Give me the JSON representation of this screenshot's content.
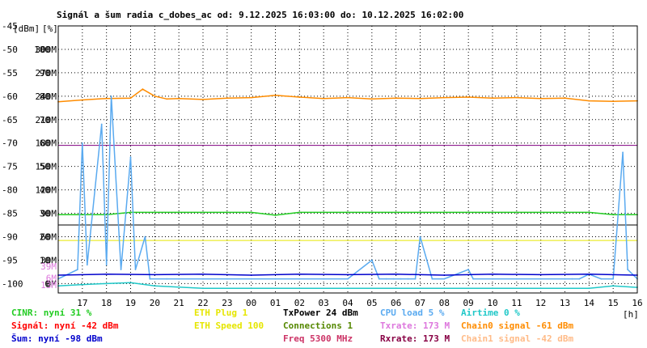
{
  "chart_data": {
    "type": "line",
    "title": "Signál a šum radia c_dobes_ac od: 9.12.2025 16:03:00 do: 10.12.2025 16:02:00",
    "axis_units": {
      "dbm": "[dBm]",
      "pct": "[%]"
    },
    "xunit": "[h]",
    "y_dbm_ticks": [
      -45,
      -50,
      -55,
      -60,
      -65,
      -70,
      -75,
      -80,
      -85,
      -90,
      -95,
      -100
    ],
    "y_pct_ticks": [
      null,
      100,
      90,
      80,
      70,
      60,
      50,
      40,
      30,
      20,
      10,
      0
    ],
    "y_rate_ticks": [
      null,
      "300M",
      "270M",
      "240M",
      "210M",
      "180M",
      "150M",
      "120M",
      "90M",
      "60M",
      "30M",
      "0M"
    ],
    "y_rate_extra": [
      "39M",
      "13M",
      "6M"
    ],
    "ylim_dbm": [
      -102,
      -45
    ],
    "x_ticks": [
      "17",
      "18",
      "19",
      "20",
      "21",
      "22",
      "23",
      "00",
      "01",
      "02",
      "03",
      "04",
      "05",
      "06",
      "07",
      "08",
      "09",
      "10",
      "11",
      "12",
      "13",
      "14",
      "15",
      "16"
    ],
    "xlim_hours": [
      0,
      24
    ],
    "reference_lines": [
      {
        "name": "purple",
        "dbm": -70.5,
        "color": "#800080"
      },
      {
        "name": "black",
        "dbm": -87.5,
        "color": "#000000"
      },
      {
        "name": "yellow",
        "dbm": -90.8,
        "color": "#e6e600"
      }
    ],
    "series": [
      {
        "name": "Chain0 signal -61 dBm",
        "color": "#ff8c00",
        "x": [
          0.0,
          1.0,
          2.0,
          3.0,
          3.5,
          4.0,
          4.5,
          5.0,
          6.0,
          7.0,
          8.0,
          9.0,
          10.0,
          11.0,
          12.0,
          13.0,
          14.0,
          15.0,
          16.0,
          17.0,
          18.0,
          19.0,
          20.0,
          21.0,
          22.0,
          23.0,
          24.0
        ],
        "y": [
          -61.2,
          -60.8,
          -60.5,
          -60.4,
          -58.5,
          -60.0,
          -60.6,
          -60.5,
          -60.7,
          -60.4,
          -60.3,
          -59.8,
          -60.2,
          -60.5,
          -60.3,
          -60.6,
          -60.4,
          -60.5,
          -60.3,
          -60.2,
          -60.4,
          -60.3,
          -60.5,
          -60.4,
          -61.0,
          -61.1,
          -61.0
        ]
      },
      {
        "name": "green",
        "color": "#22cc22",
        "x": [
          0.0,
          1.0,
          2.0,
          3.0,
          4.0,
          5.0,
          6.0,
          7.0,
          8.0,
          9.0,
          10.0,
          11.0,
          12.0,
          13.0,
          14.0,
          15.0,
          16.0,
          17.0,
          18.0,
          19.0,
          20.0,
          21.0,
          22.0,
          23.0,
          24.0
        ],
        "y": [
          -85.3,
          -85.3,
          -85.3,
          -84.8,
          -84.8,
          -84.8,
          -84.8,
          -84.8,
          -84.8,
          -85.4,
          -84.8,
          -84.8,
          -84.8,
          -84.8,
          -84.8,
          -84.8,
          -84.8,
          -84.8,
          -84.8,
          -84.8,
          -84.8,
          -84.8,
          -84.8,
          -85.3,
          -85.3
        ]
      },
      {
        "name": "CPU load 5 %",
        "color": "#5aaaf0",
        "x": [
          0.0,
          0.8,
          1.0,
          1.2,
          1.8,
          2.0,
          2.2,
          2.6,
          3.0,
          3.2,
          3.6,
          3.8,
          4.5,
          5.0,
          6.0,
          7.0,
          8.0,
          9.0,
          10.0,
          11.0,
          12.0,
          13.0,
          13.3,
          13.6,
          13.9,
          14.2,
          14.5,
          14.8,
          15.0,
          15.5,
          16.0,
          17.0,
          17.2,
          18.0,
          19.0,
          20.0,
          21.0,
          21.3,
          21.6,
          22.0,
          22.5,
          23.0,
          23.4,
          23.6,
          24.0
        ],
        "y": [
          -99,
          -97,
          -70,
          -96,
          -66,
          -96,
          -60,
          -97,
          -73,
          -97,
          -90,
          -99,
          -99,
          -99,
          -99,
          -99,
          -99,
          -99,
          -99,
          -99,
          -99,
          -95,
          -99,
          -99,
          -99,
          -99,
          -99,
          -99,
          -90,
          -99,
          -99,
          -97,
          -99,
          -99,
          -99,
          -99,
          -99,
          -99,
          -99,
          -98,
          -99,
          -99,
          -72,
          -97,
          -99
        ]
      },
      {
        "name": "Airtime 0 %",
        "color": "#20c8c8",
        "x": [
          0.0,
          1.0,
          2.0,
          3.0,
          4.0,
          6.0,
          8.0,
          10.0,
          12.0,
          14.0,
          16.0,
          18.0,
          20.0,
          22.0,
          23.0,
          24.0
        ],
        "y": [
          -100.5,
          -100.2,
          -100.0,
          -99.8,
          -100.5,
          -101.0,
          -101.0,
          -101.0,
          -101.0,
          -101.0,
          -101.0,
          -101.0,
          -101.0,
          -101.0,
          -100.5,
          -100.8
        ]
      },
      {
        "name": "blue",
        "color": "#0000cc",
        "x": [
          0.0,
          2.0,
          4.0,
          6.0,
          8.0,
          10.0,
          12.0,
          14.0,
          16.0,
          18.0,
          20.0,
          22.0,
          24.0
        ],
        "y": [
          -98.2,
          -98.0,
          -98.1,
          -98.0,
          -98.2,
          -98.0,
          -98.1,
          -98.0,
          -98.2,
          -98.0,
          -98.1,
          -98.0,
          -98.2
        ]
      }
    ],
    "legend": [
      [
        {
          "text": "CINR: nyní 31 %",
          "color": "#22cc22"
        },
        {
          "text": "ETH Plug 1",
          "color": "#e6e600"
        },
        {
          "text": "TxPower 24 dBm",
          "color": "#000000"
        },
        {
          "text": "CPU load 5 %",
          "color": "#5aaaf0"
        },
        {
          "text": "Airtime 0 %",
          "color": "#20c8c8"
        }
      ],
      [
        {
          "text": "Signál: nyní -42 dBm",
          "color": "#ff0000"
        },
        {
          "text": "ETH Speed 100",
          "color": "#e6e600"
        },
        {
          "text": "Connections 1",
          "color": "#558800"
        },
        {
          "text": "Txrate: 173 M",
          "color": "#dd77dd"
        },
        {
          "text": "Chain0 signal -61 dBm",
          "color": "#ff8c00"
        }
      ],
      [
        {
          "text": "Šum: nyní -98 dBm",
          "color": "#0000cc"
        },
        {
          "text": "",
          "color": "#ffffff"
        },
        {
          "text": "Freq 5300 MHz",
          "color": "#cc3366"
        },
        {
          "text": "Rxrate: 173 M",
          "color": "#880044"
        },
        {
          "text": "Chain1 signal -42 dBm",
          "color": "#ffbb88"
        }
      ]
    ]
  }
}
